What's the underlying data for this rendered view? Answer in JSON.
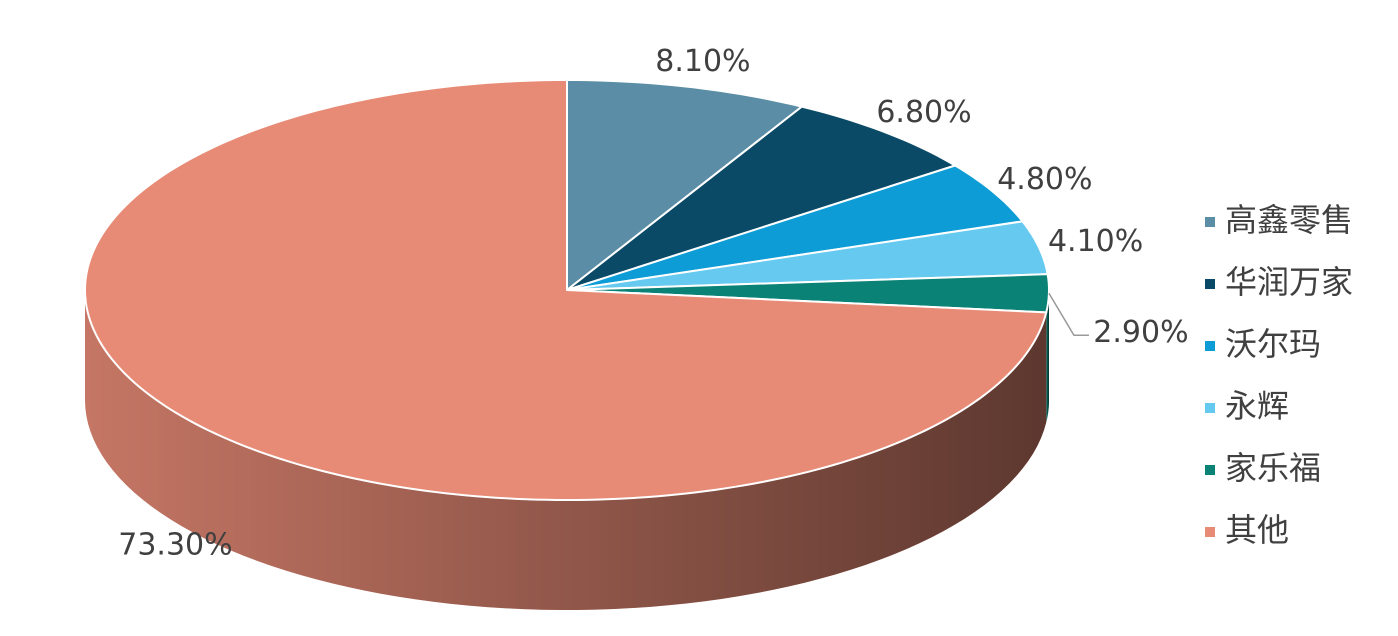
{
  "chart_data": {
    "type": "pie3d",
    "categories": [
      "高鑫零售",
      "华润万家",
      "沃尔玛",
      "永辉",
      "家乐福",
      "其他"
    ],
    "values": [
      8.1,
      6.8,
      4.8,
      4.1,
      2.9,
      73.3
    ],
    "value_labels": [
      "8.10%",
      "6.80%",
      "4.80%",
      "4.10%",
      "2.90%",
      "73.30%"
    ],
    "colors": [
      "#5b8ea6",
      "#0b4a66",
      "#0e9cd6",
      "#66c9ef",
      "#0a8276",
      "#e88b76"
    ],
    "legend": "right"
  }
}
